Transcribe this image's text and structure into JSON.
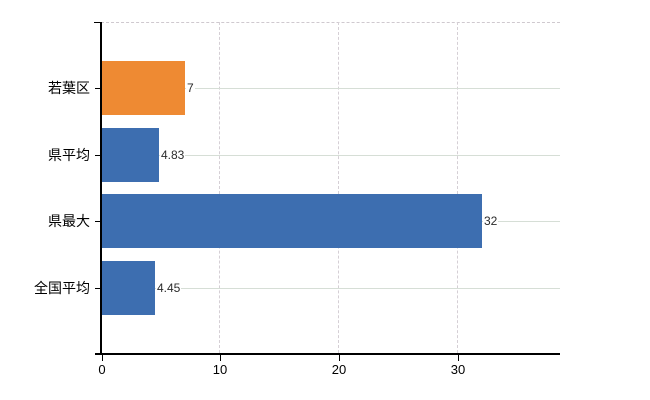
{
  "chart_data": {
    "type": "bar",
    "orientation": "horizontal",
    "title": "",
    "xlabel": "",
    "ylabel": "",
    "categories": [
      "若葉区",
      "県平均",
      "県最大",
      "全国平均"
    ],
    "values": [
      7,
      4.83,
      32,
      4.45
    ],
    "value_labels": [
      "7",
      "4.83",
      "32",
      "4.45"
    ],
    "bar_colors": [
      "#ee8a33",
      "#3d6eb0",
      "#3d6eb0",
      "#3d6eb0"
    ],
    "x_ticks": [
      "0",
      "10",
      "20",
      "30"
    ],
    "x_tick_values": [
      0,
      10,
      20,
      30
    ],
    "xlim": [
      0,
      38.6
    ],
    "grid": true,
    "legend": "none",
    "highlighted_category": "若葉区"
  },
  "colors": {
    "highlight_bar": "#ee8a33",
    "default_bar": "#3d6eb0",
    "axis": "#000000",
    "gridline_horizontal": "#d6ded6",
    "gridline_vertical": "#d5cfd5",
    "background": "#ffffff",
    "value_label_text": "#2b2b2b"
  }
}
